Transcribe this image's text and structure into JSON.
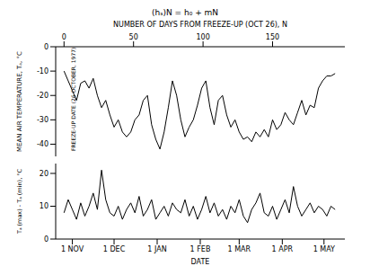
{
  "chart_data": [
    {
      "type": "line",
      "title": "(hₛ)N = h₀ + mN",
      "x_label": "NUMBER OF DAYS FROM FREEZE-UP (OCT 26), N",
      "y_label": "MEAN AIR TEMPERATURE, Tₐ, °C",
      "annotation": "FREEZE-UP DATE (26 OCTOBER, 1977)",
      "color": "#000000",
      "x": [
        0,
        3,
        6,
        9,
        12,
        15,
        18,
        21,
        24,
        27,
        30,
        33,
        36,
        39,
        42,
        45,
        48,
        51,
        54,
        57,
        60,
        63,
        66,
        69,
        72,
        75,
        78,
        81,
        84,
        87,
        90,
        93,
        96,
        99,
        102,
        105,
        108,
        111,
        114,
        117,
        120,
        123,
        126,
        129,
        132,
        135,
        138,
        141,
        144,
        147,
        150,
        153,
        156,
        159,
        162,
        165,
        168,
        171,
        174,
        177,
        180,
        183,
        186,
        189,
        192,
        195
      ],
      "values": [
        -10,
        -14,
        -18,
        -22,
        -15,
        -14,
        -17,
        -13,
        -20,
        -25,
        -22,
        -28,
        -33,
        -30,
        -35,
        -37,
        -35,
        -30,
        -28,
        -22,
        -20,
        -32,
        -38,
        -42,
        -35,
        -25,
        -14,
        -20,
        -30,
        -37,
        -33,
        -30,
        -24,
        -17,
        -14,
        -25,
        -32,
        -22,
        -20,
        -28,
        -33,
        -30,
        -35,
        -38,
        -37,
        -39,
        -35,
        -37,
        -34,
        -37,
        -30,
        -34,
        -32,
        -27,
        -30,
        -32,
        -27,
        -22,
        -28,
        -24,
        -25,
        -17,
        -14,
        -12,
        -12,
        -11
      ],
      "xlim": [
        -6,
        202
      ],
      "xticks": [
        0,
        50,
        100,
        150
      ],
      "ylim": [
        -45,
        0
      ],
      "yticks": [
        -40,
        -30,
        -20,
        -10,
        0
      ]
    },
    {
      "type": "line",
      "x_label": "DATE",
      "y_label": "Tₐ (max) - Tₐ (min), °C",
      "color": "#000000",
      "x": [
        0,
        3,
        6,
        9,
        12,
        15,
        18,
        21,
        24,
        27,
        30,
        33,
        36,
        39,
        42,
        45,
        48,
        51,
        54,
        57,
        60,
        63,
        66,
        69,
        72,
        75,
        78,
        81,
        84,
        87,
        90,
        93,
        96,
        99,
        102,
        105,
        108,
        111,
        114,
        117,
        120,
        123,
        126,
        129,
        132,
        135,
        138,
        141,
        144,
        147,
        150,
        153,
        156,
        159,
        162,
        165,
        168,
        171,
        174,
        177,
        180,
        183,
        186,
        189,
        192,
        195
      ],
      "values": [
        8,
        12,
        9,
        6,
        11,
        7,
        10,
        14,
        9,
        21,
        12,
        8,
        7,
        10,
        6,
        9,
        11,
        8,
        13,
        7,
        9,
        12,
        6,
        8,
        10,
        7,
        11,
        9,
        8,
        12,
        7,
        10,
        6,
        9,
        13,
        8,
        11,
        7,
        9,
        6,
        10,
        8,
        12,
        7,
        5,
        9,
        11,
        14,
        8,
        7,
        10,
        6,
        9,
        12,
        8,
        16,
        10,
        7,
        9,
        11,
        8,
        10,
        9,
        7,
        10,
        9
      ],
      "xlim": [
        -6,
        202
      ],
      "xticks": [
        {
          "value": 6,
          "label": "1 NOV"
        },
        {
          "value": 36,
          "label": "1 DEC"
        },
        {
          "value": 67,
          "label": "1 JAN"
        },
        {
          "value": 98,
          "label": "1 FEB"
        },
        {
          "value": 126,
          "label": "1 MAR"
        },
        {
          "value": 157,
          "label": "1 APR"
        },
        {
          "value": 187,
          "label": "1 MAY"
        }
      ],
      "ylim": [
        0,
        23
      ],
      "yticks": [
        0,
        10,
        20
      ]
    }
  ]
}
